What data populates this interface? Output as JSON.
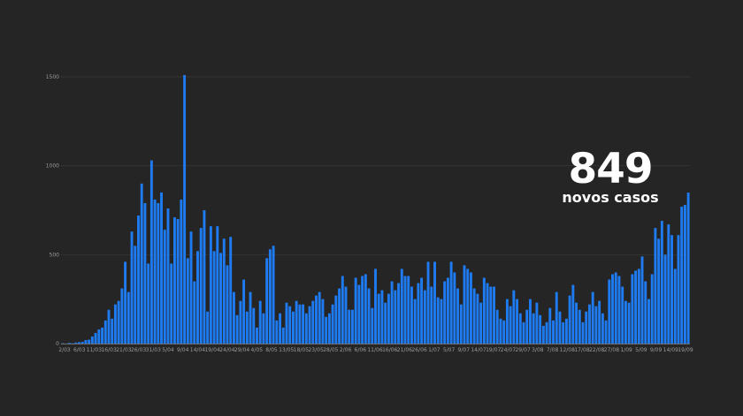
{
  "callout": {
    "number": "849",
    "label": "novos casos"
  },
  "colors": {
    "background": "#252525",
    "bar": "#1e7bf2",
    "grid": "#353535",
    "axis": "#6e6e6e",
    "tick_text": "#9a9a9a"
  },
  "chart_data": {
    "type": "bar",
    "title": "",
    "xlabel": "",
    "ylabel": "",
    "ylim": [
      0,
      1500
    ],
    "yticks": [
      0,
      500,
      1000,
      1500
    ],
    "grid": true,
    "start_date": "2/03",
    "xtick_labels": [
      "2/03",
      "6/03",
      "11/03",
      "16/03",
      "21/03",
      "26/03",
      "31/03",
      "5/04",
      "9/04",
      "14/04",
      "19/04",
      "24/04",
      "29/04",
      "4/05",
      "8/05",
      "13/05",
      "18/05",
      "23/05",
      "28/05",
      "2/06",
      "6/06",
      "11/06",
      "16/06",
      "21/06",
      "26/06",
      "1/07",
      "5/07",
      "9/07",
      "14/07",
      "19/07",
      "24/07",
      "29/07",
      "3/08",
      "7/08",
      "12/08",
      "17/08",
      "22/08",
      "27/08",
      "1/09",
      "5/09",
      "9/09",
      "14/09",
      "19/09"
    ],
    "values": [
      2,
      0,
      4,
      2,
      6,
      8,
      10,
      20,
      22,
      40,
      60,
      80,
      90,
      130,
      190,
      140,
      220,
      240,
      310,
      460,
      290,
      630,
      550,
      720,
      900,
      790,
      450,
      1030,
      810,
      790,
      850,
      640,
      760,
      450,
      710,
      700,
      810,
      1510,
      480,
      630,
      350,
      520,
      650,
      750,
      180,
      660,
      520,
      660,
      510,
      590,
      440,
      600,
      290,
      160,
      240,
      360,
      180,
      290,
      200,
      90,
      240,
      170,
      480,
      530,
      550,
      130,
      170,
      90,
      230,
      210,
      180,
      240,
      220,
      220,
      170,
      210,
      240,
      270,
      290,
      250,
      150,
      170,
      220,
      270,
      310,
      380,
      320,
      190,
      190,
      370,
      330,
      380,
      390,
      310,
      200,
      420,
      280,
      300,
      230,
      280,
      350,
      300,
      340,
      420,
      380,
      380,
      320,
      250,
      340,
      370,
      300,
      460,
      320,
      460,
      260,
      250,
      350,
      370,
      460,
      400,
      310,
      220,
      440,
      420,
      400,
      310,
      280,
      230,
      370,
      340,
      320,
      320,
      190,
      140,
      130,
      250,
      210,
      300,
      250,
      170,
      120,
      190,
      250,
      170,
      230,
      160,
      100,
      120,
      200,
      130,
      290,
      180,
      120,
      140,
      270,
      330,
      230,
      190,
      120,
      180,
      220,
      290,
      210,
      240,
      170,
      130,
      360,
      390,
      400,
      380,
      320,
      240,
      230,
      390,
      410,
      420,
      490,
      350,
      250,
      390,
      650,
      590,
      690,
      500,
      670,
      610,
      420,
      610,
      770,
      780,
      849
    ]
  }
}
